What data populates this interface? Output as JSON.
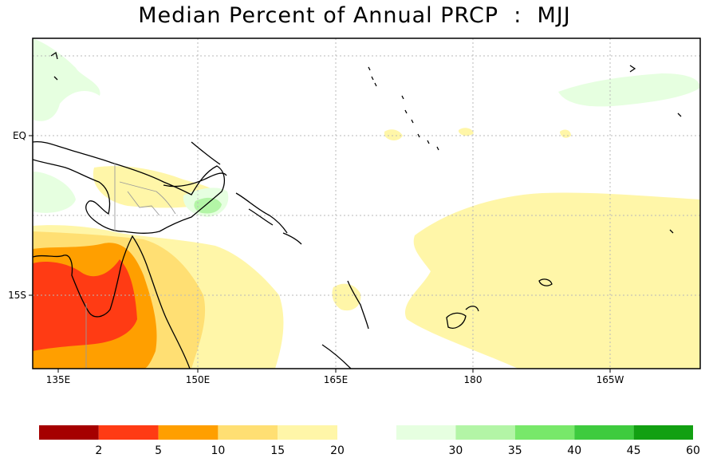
{
  "title": "Median Percent of Annual PRCP  :  MJJ",
  "axes": {
    "x_ticks": [
      "135E",
      "150E",
      "165E",
      "180",
      "165W"
    ],
    "y_ticks": [
      "EQ",
      "15S"
    ]
  },
  "legend": {
    "dry": {
      "colors": [
        "#a50000",
        "#ff3b14",
        "#ff9f00",
        "#ffdf73",
        "#fff6a8"
      ],
      "labels": [
        "2",
        "5",
        "10",
        "15",
        "20"
      ]
    },
    "wet": {
      "colors": [
        "#e6ffe0",
        "#b3f5a6",
        "#78e86a",
        "#3ecb3e",
        "#12a012"
      ],
      "labels": [
        "30",
        "35",
        "40",
        "45",
        "60"
      ]
    }
  }
}
